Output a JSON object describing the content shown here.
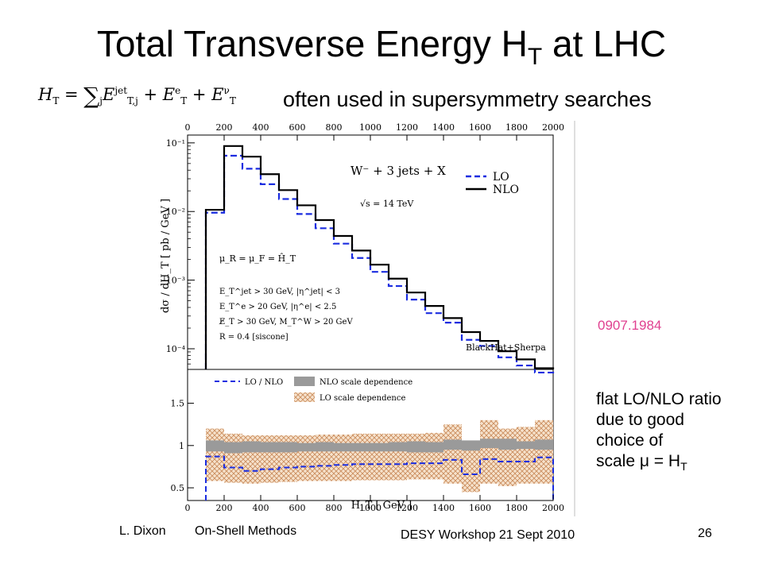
{
  "slide": {
    "title_main": "Total Transverse Energy H",
    "title_sub": "T",
    "title_tail": " at LHC",
    "subtitle": "often used in supersymmetry searches",
    "formula": {
      "lhs": "H",
      "lhs_sub": "T",
      "eq": " = ",
      "sum": "∑",
      "sum_index": "j",
      "term1": "E",
      "term1_sub": "T,j",
      "term1_sup": "jet",
      "plus1": " + ",
      "term2": "E",
      "term2_sub": "T",
      "term2_sup": "e",
      "plus2": " + ",
      "term3": "E",
      "term3_sub": "T",
      "term3_sup": "ν"
    },
    "reference": "0907.1984",
    "note_lines": [
      "flat LO/NLO ratio",
      "due to good",
      "choice of"
    ],
    "note_last": "scale μ = H",
    "note_last_sub": "T",
    "footer": {
      "author": "L. Dixon",
      "topic": "On-Shell Methods",
      "event": "DESY Workshop   21 Sept 2010",
      "page": "26"
    }
  },
  "colors": {
    "lo": "#1b2de0",
    "nlo": "#000000",
    "nlo_band": "#9a9a9a",
    "lo_band": "#e8b890",
    "reference": "#e04090"
  },
  "chart_data": [
    {
      "type": "line",
      "x_ticks_top": [
        "0",
        "200",
        "400",
        "600",
        "800",
        "1000",
        "1200",
        "1400",
        "1600",
        "1800",
        "2000"
      ],
      "xlim": [
        0,
        2000
      ],
      "ylim": [
        5e-05,
        0.13
      ],
      "y_log": true,
      "y_ticks": [
        "10⁻¹",
        "10⁻²",
        "10⁻³",
        "10⁻⁴"
      ],
      "ylabel": "dσ / dH_T   [ pb / GeV ]",
      "bin_edges": [
        100,
        200,
        300,
        400,
        500,
        600,
        700,
        800,
        900,
        1000,
        1100,
        1200,
        1300,
        1400,
        1500,
        1600,
        1700,
        1800,
        1900,
        2000
      ],
      "series": [
        {
          "name": "LO",
          "style": "dashed",
          "values": [
            0.0096,
            0.065,
            0.042,
            0.025,
            0.0152,
            0.0092,
            0.0057,
            0.0034,
            0.0021,
            0.00132,
            0.00082,
            0.00052,
            0.00033,
            0.00024,
            0.000135,
            0.00011,
            7.5e-05,
            5.7e-05,
            4.5e-05
          ]
        },
        {
          "name": "NLO",
          "style": "solid",
          "values": [
            0.0106,
            0.09,
            0.063,
            0.035,
            0.0205,
            0.0123,
            0.0075,
            0.0044,
            0.0027,
            0.00168,
            0.00105,
            0.00066,
            0.00042,
            0.00028,
            0.000175,
            0.00013,
            9.2e-05,
            7e-05,
            5.2e-05
          ]
        }
      ],
      "legend": [
        "LO",
        "NLO"
      ],
      "legend_position": "top-right",
      "annotations": {
        "process": "W⁻ + 3 jets + X",
        "energy": "√s = 14 TeV",
        "scale": "μ_R = μ_F = Ĥ_T",
        "cuts": [
          "E_T^jet > 30 GeV, |η^jet| < 3",
          "E_T^e > 20 GeV, |η^e| < 2.5",
          "E̸_T > 30 GeV, M_T^W > 20 GeV",
          "R = 0.4  [siscone]"
        ],
        "credit": "BlackHat+Sherpa"
      }
    },
    {
      "type": "line",
      "x_ticks": [
        "0",
        "200",
        "400",
        "600",
        "800",
        "1000",
        "1200",
        "1400",
        "1600",
        "1800",
        "2000"
      ],
      "xlabel": "H_T  [ GeV ]",
      "xlim": [
        0,
        2000
      ],
      "ylim": [
        0.35,
        1.9
      ],
      "y_ticks": [
        "0.5",
        "1",
        "1.5"
      ],
      "bin_edges": [
        100,
        200,
        300,
        400,
        500,
        600,
        700,
        800,
        900,
        1000,
        1100,
        1200,
        1300,
        1400,
        1500,
        1600,
        1700,
        1800,
        1900,
        2000
      ],
      "series": [
        {
          "name": "LO / NLO",
          "style": "dashed",
          "values": [
            0.87,
            0.74,
            0.7,
            0.72,
            0.74,
            0.75,
            0.76,
            0.77,
            0.78,
            0.78,
            0.78,
            0.79,
            0.79,
            0.83,
            0.66,
            0.84,
            0.81,
            0.81,
            0.86
          ]
        },
        {
          "name": "NLO scale dependence",
          "style": "band",
          "low": [
            0.93,
            0.91,
            0.92,
            0.92,
            0.92,
            0.93,
            0.93,
            0.93,
            0.93,
            0.93,
            0.93,
            0.92,
            0.92,
            0.95,
            0.94,
            0.97,
            0.95,
            0.96,
            0.95
          ],
          "high": [
            1.06,
            1.04,
            1.05,
            1.04,
            1.04,
            1.03,
            1.04,
            1.03,
            1.03,
            1.03,
            1.04,
            1.05,
            1.04,
            1.07,
            1.06,
            1.08,
            1.08,
            1.05,
            1.07
          ]
        },
        {
          "name": "LO scale dependence",
          "style": "band",
          "low": [
            0.58,
            0.56,
            0.55,
            0.56,
            0.57,
            0.58,
            0.58,
            0.58,
            0.59,
            0.59,
            0.59,
            0.6,
            0.6,
            0.55,
            0.45,
            0.55,
            0.52,
            0.55,
            0.55
          ],
          "high": [
            1.2,
            1.14,
            1.12,
            1.12,
            1.12,
            1.12,
            1.13,
            1.13,
            1.14,
            1.14,
            1.14,
            1.14,
            1.15,
            1.25,
            0.98,
            1.3,
            1.2,
            1.22,
            1.3
          ]
        }
      ],
      "legend": [
        "LO / NLO",
        "NLO scale dependence",
        "LO scale dependence"
      ],
      "legend_position": "top"
    }
  ]
}
